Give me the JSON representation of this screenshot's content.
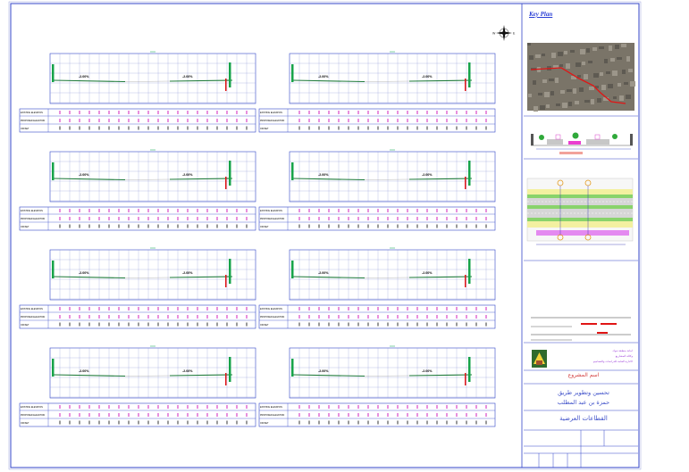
{
  "key_plan": {
    "title": "Key Plan"
  },
  "project": {
    "label": "اسم المشروع",
    "name_line1": "تحسين وتطوير طريق",
    "name_line2": "حمزة بن عبد المطلب",
    "drawing_title": "القطاعات العرضية"
  },
  "authority": {
    "line1": "امانة منطقة تبوك",
    "line2": "وكالة المشاريع",
    "line3": "الادارة العامة للدراسات والتصاميم"
  },
  "sections": {
    "grade_left": "-2.00%",
    "grade_right": "-2.00%",
    "row_labels": [
      "EXISTING ELEVATION",
      "PROPOSED ELEVATION",
      "OFFSET"
    ]
  },
  "colors": {
    "frame": "#3346c8",
    "grid": "#8e97d6",
    "grade_text": "#e0311f",
    "road": "#1e7a3a",
    "marker": "#d946c9"
  }
}
